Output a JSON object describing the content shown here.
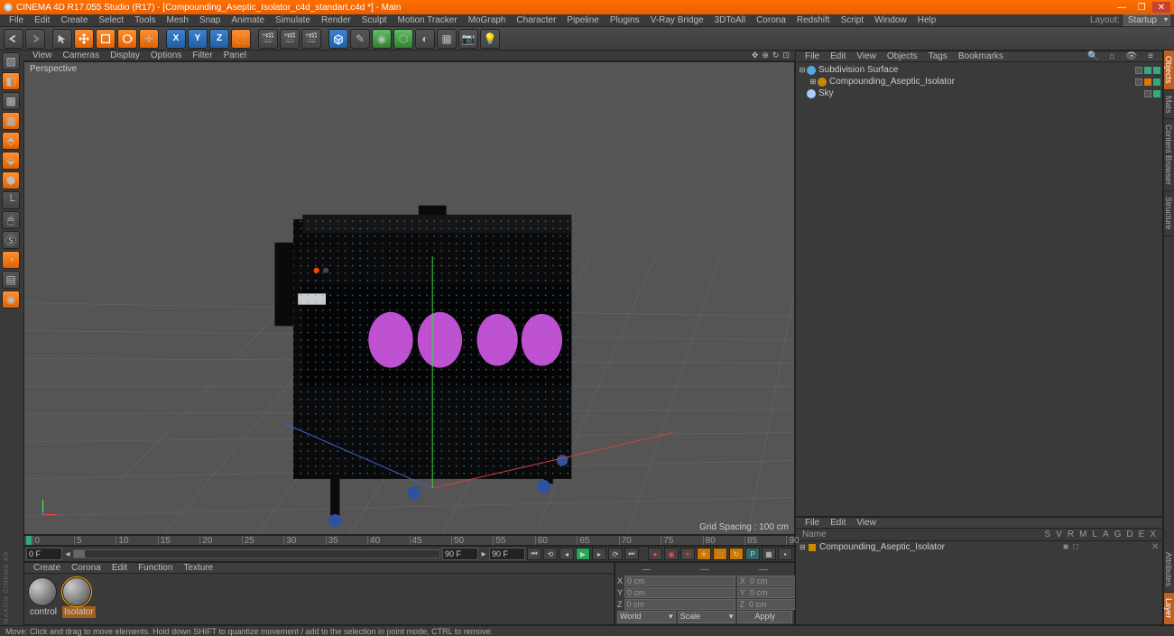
{
  "title": "CINEMA 4D R17.055 Studio (R17) - [Compounding_Aseptic_Isolator_c4d_standart.c4d *] - Main",
  "titlebar_bg": "#e85d00",
  "menu": [
    "File",
    "Edit",
    "Create",
    "Select",
    "Tools",
    "Mesh",
    "Snap",
    "Animate",
    "Simulate",
    "Render",
    "Sculpt",
    "Motion Tracker",
    "MoGraph",
    "Character",
    "Pipeline",
    "Plugins",
    "V-Ray Bridge",
    "3DToAll",
    "Corona",
    "Redshift",
    "Script",
    "Window",
    "Help"
  ],
  "layout_label": "Layout:",
  "layout_value": "Startup",
  "vp_menu": [
    "View",
    "Cameras",
    "Display",
    "Options",
    "Filter",
    "Panel"
  ],
  "vp_label": "Perspective",
  "grid_info": "Grid Spacing : 100 cm",
  "timeline": {
    "ticks": [
      0,
      5,
      10,
      15,
      20,
      25,
      30,
      35,
      40,
      45,
      50,
      55,
      60,
      65,
      70,
      75,
      80,
      85,
      90
    ],
    "start_field": "0 F",
    "end_field": "90 F",
    "cur_start": "0 F",
    "cur_end": "90 F"
  },
  "mat_menu": [
    "Create",
    "Corona",
    "Edit",
    "Function",
    "Texture"
  ],
  "materials": [
    {
      "name": "control",
      "selected": false
    },
    {
      "name": "Isolator",
      "selected": true
    }
  ],
  "coords": {
    "head": [
      "—",
      "—",
      "—"
    ],
    "rows": [
      {
        "axis": "X",
        "p": "0 cm",
        "s": "X  0 cm",
        "r": "H  0 °"
      },
      {
        "axis": "Y",
        "p": "0 cm",
        "s": "Y  0 cm",
        "r": "P  0 °"
      },
      {
        "axis": "Z",
        "p": "0 cm",
        "s": "Z  0 cm",
        "r": "B  0 °"
      }
    ],
    "dd1": "World",
    "dd2": "Scale",
    "apply": "Apply"
  },
  "obj_menu": [
    "File",
    "Edit",
    "View",
    "Objects",
    "Tags",
    "Bookmarks"
  ],
  "objects": [
    {
      "name": "Subdivision Surface",
      "icon": "subdiv",
      "indent": 0,
      "exp": "⊟",
      "dots": [
        "c",
        "g",
        "g"
      ]
    },
    {
      "name": "Compounding_Aseptic_Isolator",
      "icon": "model",
      "indent": 1,
      "exp": "⊞",
      "dots": [
        "c",
        "o",
        "g"
      ]
    },
    {
      "name": "Sky",
      "icon": "sky",
      "indent": 0,
      "exp": "",
      "dots": [
        "c",
        "g"
      ]
    }
  ],
  "attr_menu": [
    "File",
    "Edit",
    "View"
  ],
  "attr_cols": {
    "name": "Name",
    "flags": [
      "S",
      "V",
      "R",
      "M",
      "L",
      "A",
      "G",
      "D",
      "E",
      "X"
    ]
  },
  "attr_row": {
    "name": "Compounding_Aseptic_Isolator",
    "flags": [
      "■",
      "□",
      "",
      "",
      "",
      "",
      "",
      "",
      "",
      "✕"
    ]
  },
  "side_tabs_top": [
    "Objects",
    "Mats",
    "Content Browser",
    "Structure"
  ],
  "side_tabs_bottom": [
    "Attributes",
    "Layer"
  ],
  "status": "Move: Click and drag to move elements. Hold down SHIFT to quantize movement / add to the selection in point mode, CTRL to remove.",
  "maxon": "MAXON CINEMA 4D",
  "colors": {
    "glove": "#c050d0",
    "model_body": "#0a0a0a",
    "floor": "#5a5a5a",
    "grid": "#6a6a6a",
    "axis_x": "#d04040",
    "axis_y": "#40d040",
    "axis_z": "#4060d0"
  }
}
